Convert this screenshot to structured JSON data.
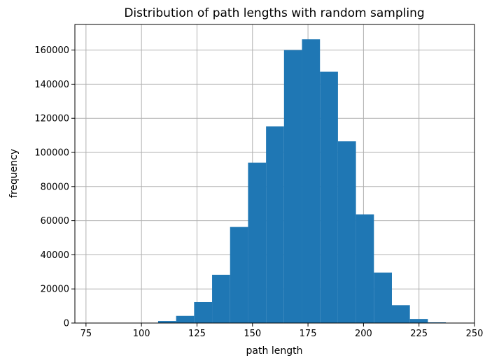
{
  "chart_data": {
    "type": "bar",
    "title": "Distribution of path lengths with random sampling",
    "xlabel": "path length",
    "ylabel": "frequency",
    "xlim": [
      70,
      250
    ],
    "ylim": [
      0,
      175000
    ],
    "grid": true,
    "bar_color": "#1f77b4",
    "x_ticks": [
      "75",
      "100",
      "125",
      "150",
      "175",
      "200",
      "225",
      "250"
    ],
    "y_ticks": [
      "0",
      "20000",
      "40000",
      "60000",
      "80000",
      "100000",
      "120000",
      "140000",
      "160000"
    ],
    "bins": [
      {
        "start": 107.5,
        "end": 115.6,
        "value": 1200
      },
      {
        "start": 115.6,
        "end": 123.7,
        "value": 4200
      },
      {
        "start": 123.7,
        "end": 131.8,
        "value": 12300
      },
      {
        "start": 131.8,
        "end": 139.9,
        "value": 28300
      },
      {
        "start": 139.9,
        "end": 148.0,
        "value": 56300
      },
      {
        "start": 148.0,
        "end": 156.1,
        "value": 94000
      },
      {
        "start": 156.1,
        "end": 164.2,
        "value": 115300
      },
      {
        "start": 164.2,
        "end": 172.3,
        "value": 160000
      },
      {
        "start": 172.3,
        "end": 180.4,
        "value": 166300
      },
      {
        "start": 180.4,
        "end": 188.5,
        "value": 147300
      },
      {
        "start": 188.5,
        "end": 196.6,
        "value": 106500
      },
      {
        "start": 196.6,
        "end": 204.7,
        "value": 63700
      },
      {
        "start": 204.7,
        "end": 212.8,
        "value": 29600
      },
      {
        "start": 212.8,
        "end": 220.9,
        "value": 10500
      },
      {
        "start": 220.9,
        "end": 229.0,
        "value": 2400
      },
      {
        "start": 229.0,
        "end": 237.1,
        "value": 400
      }
    ]
  }
}
